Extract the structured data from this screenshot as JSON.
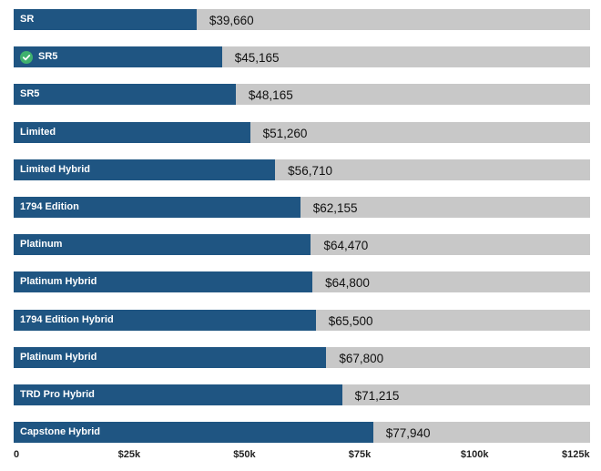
{
  "chart_data": {
    "type": "bar",
    "orientation": "horizontal",
    "categories": [
      "SR",
      "SR5",
      "SR5",
      "Limited",
      "Limited Hybrid",
      "1794 Edition",
      "Platinum",
      "Platinum Hybrid",
      "1794 Edition Hybrid",
      "Platinum Hybrid",
      "TRD Pro Hybrid",
      "Capstone Hybrid"
    ],
    "values": [
      39660,
      45165,
      48165,
      51260,
      56710,
      62155,
      64470,
      64800,
      65500,
      67800,
      71215,
      77940
    ],
    "value_labels": [
      "$39,660",
      "$45,165",
      "$48,165",
      "$51,260",
      "$56,710",
      "$62,155",
      "$64,470",
      "$64,800",
      "$65,500",
      "$67,800",
      "$71,215",
      "$77,940"
    ],
    "checked": [
      false,
      true,
      false,
      false,
      false,
      false,
      false,
      false,
      false,
      false,
      false,
      false
    ],
    "xlim": [
      0,
      125000
    ],
    "xticks": [
      0,
      25000,
      50000,
      75000,
      100000,
      125000
    ],
    "xtick_labels": [
      "0",
      "$25k",
      "$50k",
      "$75k",
      "$100k",
      "$125k"
    ],
    "title": "",
    "xlabel": "",
    "ylabel": "",
    "grid": false,
    "legend": false
  },
  "colors": {
    "bar": "#1f5582",
    "track": "#c8c8c8",
    "check": "#3fb16e"
  },
  "icons": {
    "checked_marker": "check-circle-icon"
  }
}
